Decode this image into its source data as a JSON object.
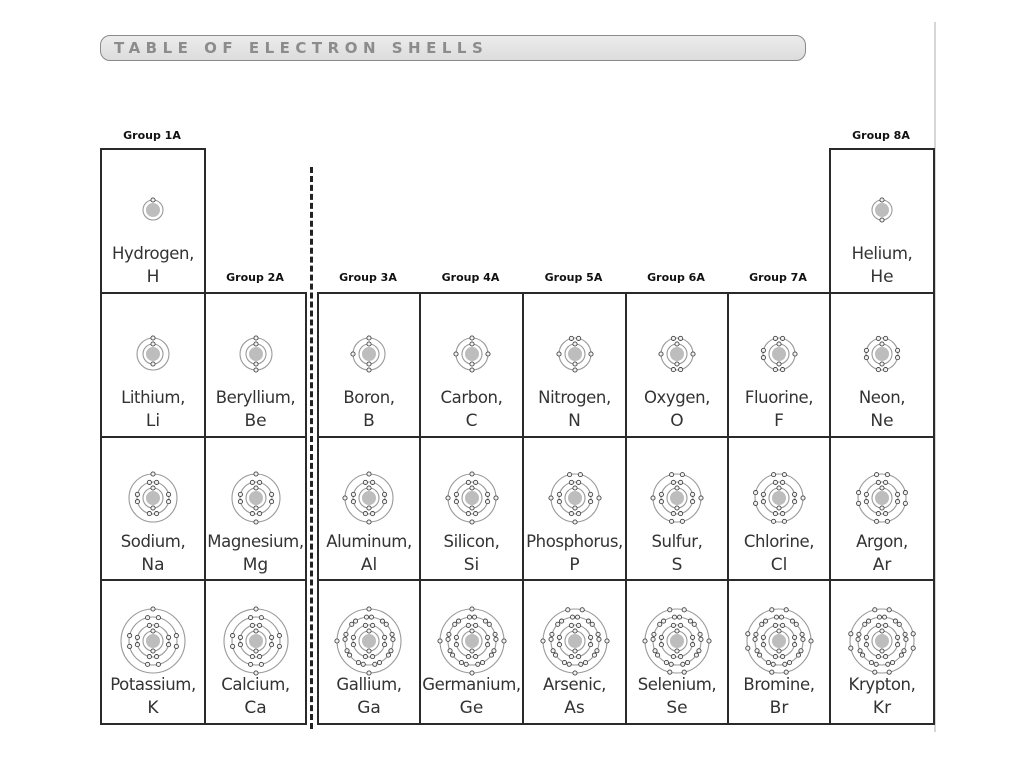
{
  "title": "TABLE OF ELECTRON SHELLS",
  "group_labels": {
    "g1": "Group 1A",
    "g2": "Group 2A",
    "g3": "Group 3A",
    "g4": "Group 4A",
    "g5": "Group 5A",
    "g6": "Group 6A",
    "g7": "Group 7A",
    "g8": "Group 8A"
  },
  "elements": [
    {
      "name": "Hydrogen,",
      "symbol": "H",
      "shells": [
        1
      ]
    },
    {
      "name": "Helium,",
      "symbol": "He",
      "shells": [
        2
      ]
    },
    {
      "name": "Lithium,",
      "symbol": "Li",
      "shells": [
        2,
        1
      ]
    },
    {
      "name": "Beryllium,",
      "symbol": "Be",
      "shells": [
        2,
        2
      ]
    },
    {
      "name": "Boron,",
      "symbol": "B",
      "shells": [
        2,
        3
      ]
    },
    {
      "name": "Carbon,",
      "symbol": "C",
      "shells": [
        2,
        4
      ]
    },
    {
      "name": "Nitrogen,",
      "symbol": "N",
      "shells": [
        2,
        5
      ]
    },
    {
      "name": "Oxygen,",
      "symbol": "O",
      "shells": [
        2,
        6
      ]
    },
    {
      "name": "Fluorine,",
      "symbol": "F",
      "shells": [
        2,
        7
      ]
    },
    {
      "name": "Neon,",
      "symbol": "Ne",
      "shells": [
        2,
        8
      ]
    },
    {
      "name": "Sodium,",
      "symbol": "Na",
      "shells": [
        2,
        8,
        1
      ]
    },
    {
      "name": "Magnesium,",
      "symbol": "Mg",
      "shells": [
        2,
        8,
        2
      ]
    },
    {
      "name": "Aluminum,",
      "symbol": "Al",
      "shells": [
        2,
        8,
        3
      ]
    },
    {
      "name": "Silicon,",
      "symbol": "Si",
      "shells": [
        2,
        8,
        4
      ]
    },
    {
      "name": "Phosphorus,",
      "symbol": "P",
      "shells": [
        2,
        8,
        5
      ]
    },
    {
      "name": "Sulfur,",
      "symbol": "S",
      "shells": [
        2,
        8,
        6
      ]
    },
    {
      "name": "Chlorine,",
      "symbol": "Cl",
      "shells": [
        2,
        8,
        7
      ]
    },
    {
      "name": "Argon,",
      "symbol": "Ar",
      "shells": [
        2,
        8,
        8
      ]
    },
    {
      "name": "Potassium,",
      "symbol": "K",
      "shells": [
        2,
        8,
        8,
        1
      ]
    },
    {
      "name": "Calcium,",
      "symbol": "Ca",
      "shells": [
        2,
        8,
        8,
        2
      ]
    },
    {
      "name": "Gallium,",
      "symbol": "Ga",
      "shells": [
        2,
        8,
        18,
        3
      ]
    },
    {
      "name": "Germanium,",
      "symbol": "Ge",
      "shells": [
        2,
        8,
        18,
        4
      ]
    },
    {
      "name": "Arsenic,",
      "symbol": "As",
      "shells": [
        2,
        8,
        18,
        5
      ]
    },
    {
      "name": "Selenium,",
      "symbol": "Se",
      "shells": [
        2,
        8,
        18,
        6
      ]
    },
    {
      "name": "Bromine,",
      "symbol": "Br",
      "shells": [
        2,
        8,
        18,
        7
      ]
    },
    {
      "name": "Krypton,",
      "symbol": "Kr",
      "shells": [
        2,
        8,
        18,
        8
      ]
    }
  ],
  "colors": {
    "nucleus": "#bdbdbd",
    "shell_ring": "#9a9a9a",
    "electron_fill": "#f2f2f2",
    "electron_stroke": "#444444",
    "cell_border": "#2a2a2a",
    "title_text": "#8c8c8c"
  }
}
